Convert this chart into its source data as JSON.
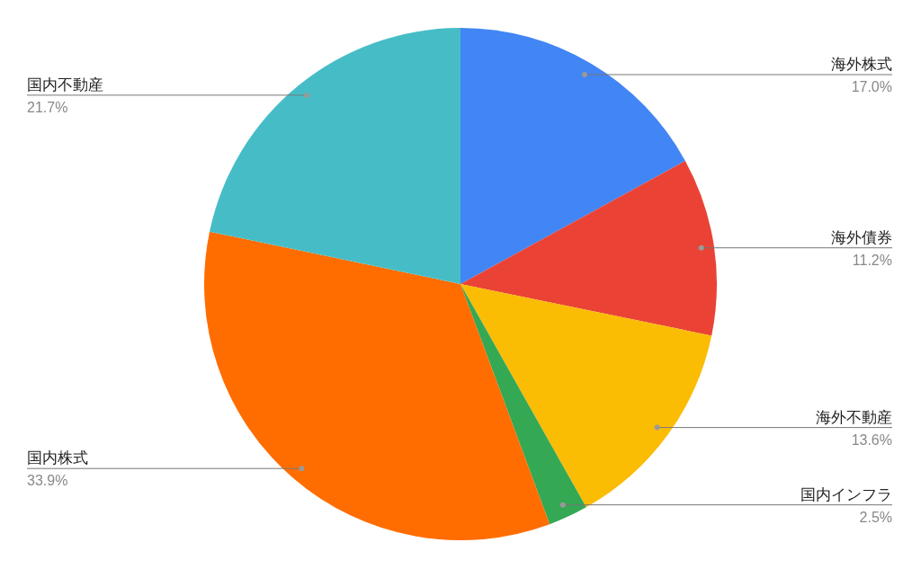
{
  "chart_data": {
    "type": "pie",
    "categories": [
      "海外株式",
      "海外債券",
      "海外不動産",
      "国内インフラ",
      "国内株式",
      "国内不動産"
    ],
    "values": [
      17.0,
      11.2,
      13.6,
      2.5,
      33.9,
      21.7
    ],
    "colors": [
      "#4285f4",
      "#ea4335",
      "#fbbc04",
      "#34a853",
      "#ff6d01",
      "#46bdc6"
    ],
    "value_labels": [
      "17.0%",
      "11.2%",
      "13.6%",
      "2.5%",
      "33.9%",
      "21.7%"
    ]
  }
}
